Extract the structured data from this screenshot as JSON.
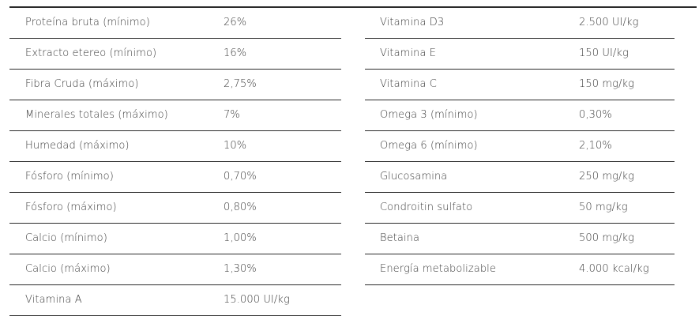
{
  "left_table": [
    {
      "name": "Proteína bruta (mínimo)",
      "value": "26%"
    },
    {
      "name": "Extracto etereo (mínimo)",
      "value": "16%"
    },
    {
      "name": "Fibra Cruda (máximo)",
      "value": "2,75%"
    },
    {
      "name": "Minerales totales (máximo)",
      "value": "7%"
    },
    {
      "name": "Humedad (máximo)",
      "value": "10%"
    },
    {
      "name": "Fósforo (mínimo)",
      "value": "0,70%"
    },
    {
      "name": "Fósforo (máximo)",
      "value": "0,80%"
    },
    {
      "name": "Calcio (mínimo)",
      "value": "1,00%"
    },
    {
      "name": "Calcio (máximo)",
      "value": "1,30%"
    },
    {
      "name": "Vitamina A",
      "value": "15.000 UI/kg"
    }
  ],
  "right_table": [
    {
      "name": "Vitamina D3",
      "value": "2.500 UI/kg"
    },
    {
      "name": "Vitamina E",
      "value": "150 UI/kg"
    },
    {
      "name": "Vitamina C",
      "value": "150 mg/kg"
    },
    {
      "name": "Omega 3 (mínimo)",
      "value": "0,30%"
    },
    {
      "name": "Omega 6 (mínimo)",
      "value": "2,10%"
    },
    {
      "name": "Glucosamina",
      "value": "250 mg/kg"
    },
    {
      "name": "Condroitin sulfato",
      "value": "50 mg/kg"
    },
    {
      "name": "Betaina",
      "value": "500 mg/kg"
    },
    {
      "name": "Energía metabolizable",
      "value": "4.000 kcal/kg"
    }
  ]
}
